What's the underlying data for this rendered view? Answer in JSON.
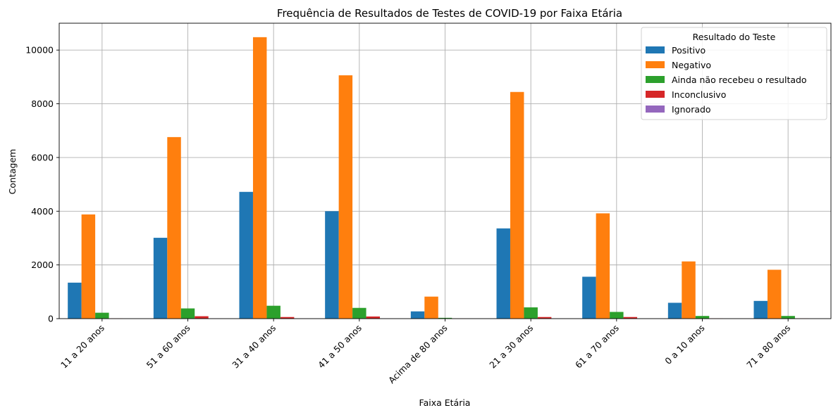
{
  "chart_data": {
    "type": "bar",
    "title": "Frequência de Resultados de Testes de COVID-19 por Faixa Etária",
    "xlabel": "Faixa Etária",
    "ylabel": "Contagem",
    "ylim": [
      0,
      11000
    ],
    "yticks": [
      0,
      2000,
      4000,
      6000,
      8000,
      10000
    ],
    "grid": true,
    "legend_title": "Resultado do Teste",
    "legend_position": "top-right",
    "categories": [
      "11 a 20 anos",
      "51 a 60 anos",
      "31 a 40 anos",
      "41 a 50 anos",
      "Acima de 80 anos",
      "21 a 30 anos",
      "61 a 70 anos",
      "0 a 10 anos",
      "71 a 80 anos"
    ],
    "series": [
      {
        "name": "Positivo",
        "color": "#1f77b4",
        "values": [
          1340,
          3010,
          4720,
          4000,
          270,
          3360,
          1560,
          590,
          660
        ]
      },
      {
        "name": "Negativo",
        "color": "#ff7f0e",
        "values": [
          3880,
          6760,
          10480,
          9060,
          820,
          8440,
          3920,
          2130,
          1820
        ]
      },
      {
        "name": "Ainda não recebeu o resultado",
        "color": "#2ca02c",
        "values": [
          220,
          380,
          480,
          400,
          30,
          420,
          250,
          100,
          100
        ]
      },
      {
        "name": "Inconclusivo",
        "color": "#d62728",
        "values": [
          10,
          90,
          60,
          80,
          5,
          60,
          60,
          10,
          10
        ]
      },
      {
        "name": "Ignorado",
        "color": "#9467bd",
        "values": [
          2,
          5,
          5,
          5,
          1,
          4,
          3,
          1,
          2
        ]
      }
    ]
  }
}
